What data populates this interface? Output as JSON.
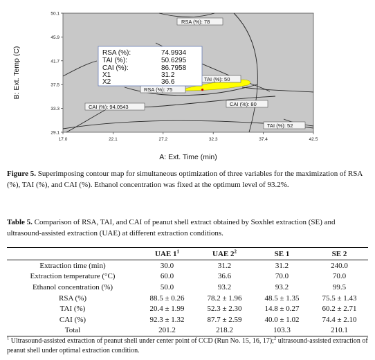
{
  "figure": {
    "chart_data": {
      "type": "contour",
      "xlabel": "A: Ext. Time (min)",
      "ylabel": "B: Ext. Temp (C)",
      "xlim": [
        17.0,
        42.5
      ],
      "ylim": [
        29.1,
        50.1
      ],
      "x_ticks": [
        "17.0",
        "22.1",
        "27.2",
        "32.3",
        "37.4",
        "42.5"
      ],
      "y_ticks": [
        "29.1",
        "33.3",
        "37.5",
        "41.7",
        "45.9",
        "50.1"
      ],
      "contour_labels": [
        "RSA (%): 78",
        "TAI (%): 50",
        "RSA (%): 75",
        "CAI (%): 94.0543",
        "CAI (%): 80",
        "TAI (%): 52"
      ],
      "overlay_region": {
        "color": "#ffff00"
      },
      "optimum_point": {
        "x": 31.2,
        "y": 36.6
      },
      "info_box": {
        "rows": [
          {
            "label": "RSA (%):",
            "value": "74.9934"
          },
          {
            "label": "TAI (%):",
            "value": "50.6295"
          },
          {
            "label": "CAI (%):",
            "value": "86.7958"
          },
          {
            "label": "X1",
            "value": "31.2"
          },
          {
            "label": "X2",
            "value": "36.6"
          }
        ]
      },
      "colors": {
        "background": "#c8c8c8",
        "overlay": "#ffff00",
        "lines": "#2a2a2a"
      }
    }
  },
  "figure_caption": {
    "label": "Figure 5.",
    "text": "Superimposing contour map for simultaneous optimization of three variables for the maximization of RSA (%), TAI (%), and CAI (%). Ethanol concentration was fixed at the optimum level of 93.2%."
  },
  "table_caption": {
    "label": "Table 5.",
    "text": "Comparison of RSA, TAI, and CAI of peanut shell extract obtained by Soxhlet extraction (SE) and ultrasound-assisted extraction (UAE) at different extraction conditions."
  },
  "table": {
    "headers": [
      {
        "text": "",
        "sup": ""
      },
      {
        "text": "UAE 1",
        "sup": "1"
      },
      {
        "text": "UAE 2",
        "sup": "2"
      },
      {
        "text": "SE 1",
        "sup": ""
      },
      {
        "text": "SE 2",
        "sup": ""
      }
    ],
    "rows": [
      [
        "Extraction time (min)",
        "30.0",
        "31.2",
        "31.2",
        "240.0"
      ],
      [
        "Extraction temperature (°C)",
        "60.0",
        "36.6",
        "70.0",
        "70.0"
      ],
      [
        "Ethanol concentration (%)",
        "50.0",
        "93.2",
        "93.2",
        "99.5"
      ],
      [
        "RSA (%)",
        "88.5 ± 0.26",
        "78.2 ± 1.96",
        "48.5 ± 1.35",
        "75.5 ± 1.43"
      ],
      [
        "TAI (%)",
        "20.4 ± 1.99",
        "52.3 ± 2.30",
        "14.8 ± 0.27",
        "60.2 ± 2.71"
      ],
      [
        "CAI (%)",
        "92.3 ± 1.32",
        "87.7 ± 2.59",
        "40.0 ± 1.02",
        "74.4 ± 2.10"
      ],
      [
        "Total",
        "201.2",
        "218.2",
        "103.3",
        "210.1"
      ]
    ]
  },
  "footnote": {
    "sup1": "1",
    "text1": " Ultrasound-assisted extraction of peanut shell under center point of CCD (Run No. 15, 16, 17);",
    "sup2": "2",
    "text2": " ultrasound-assisted extraction of peanut shell under optimal extraction condition."
  }
}
